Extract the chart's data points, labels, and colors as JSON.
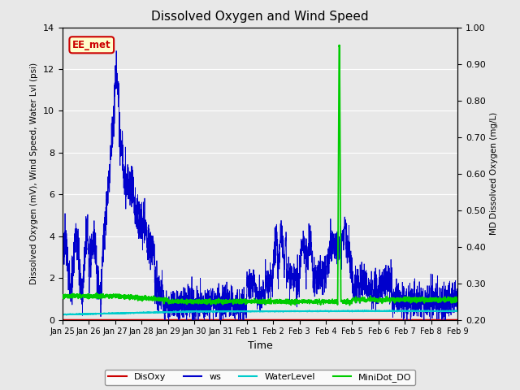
{
  "title": "Dissolved Oxygen and Wind Speed",
  "ylabel_left": "Dissolved Oxygen (mV), Wind Speed, Water Lvl (psi)",
  "ylabel_right": "MD Dissolved Oxygen (mg/L)",
  "xlabel": "Time",
  "ylim_left": [
    0,
    14
  ],
  "ylim_right": [
    0.2,
    1.0
  ],
  "yticks_left": [
    0,
    2,
    4,
    6,
    8,
    10,
    12,
    14
  ],
  "yticks_right": [
    0.2,
    0.3,
    0.4,
    0.5,
    0.6,
    0.7,
    0.8,
    0.9,
    1.0
  ],
  "xtick_labels": [
    "Jan 25",
    "Jan 26",
    "Jan 27",
    "Jan 28",
    "Jan 29",
    "Jan 30",
    "Jan 31",
    "Feb 1",
    "Feb 2",
    "Feb 3",
    "Feb 4",
    "Feb 5",
    "Feb 6",
    "Feb 7",
    "Feb 8",
    "Feb 9"
  ],
  "annotation_text": "EE_met",
  "annotation_bg": "#ffffcc",
  "annotation_edge": "#cc0000",
  "annotation_text_color": "#cc0000",
  "fig_bg_color": "#e8e8e8",
  "plot_bg_color": "#e8e8e8",
  "grid_color": "white",
  "colors": {
    "DisOxy": "#cc0000",
    "ws": "#0000cc",
    "WaterLevel": "#00cccc",
    "MiniDot_DO": "#00cc00"
  },
  "legend_labels": [
    "DisOxy",
    "ws",
    "WaterLevel",
    "MiniDot_DO"
  ]
}
